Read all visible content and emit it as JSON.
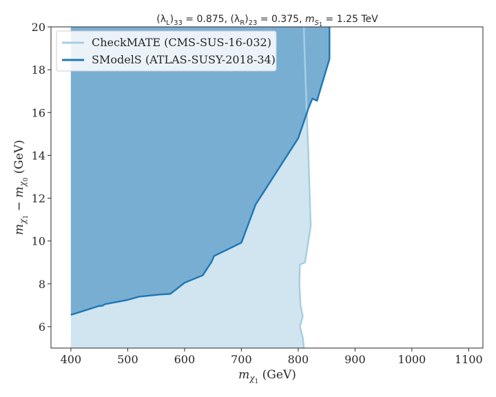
{
  "chart_data": {
    "type": "area",
    "title": "(λL)33 = 0.875, (λR)23 = 0.375, mS1 = 1.25 TeV",
    "title_parts": {
      "lamL": "(λ",
      "lamL_sub": "L",
      "lamL_idx": "33",
      "lamL_val": " = 0.875, ",
      "lamR": "(λ",
      "lamR_sub": "R",
      "lamR_idx": "23",
      "lamR_val": " = 0.375, ",
      "mS": "m",
      "mS_sub": "S",
      "mS_subsub": "1",
      "mS_val": " = 1.25 TeV"
    },
    "xlabel": "mχ1 (GeV)",
    "xlabel_parts": {
      "m": "m",
      "sub": "χ",
      "subsub": "1",
      "unit": " (GeV)"
    },
    "ylabel": "mχ1 − mχ0 (GeV)",
    "ylabel_parts": {
      "m1": "m",
      "sub1": "χ",
      "subsub1": "1",
      "minus": " − ",
      "m2": "m",
      "sub2": "χ",
      "subsub2": "0",
      "unit": " (GeV)"
    },
    "xlim": [
      365,
      1125
    ],
    "ylim": [
      5,
      20
    ],
    "xticks": [
      400,
      500,
      600,
      700,
      800,
      900,
      1000,
      1100
    ],
    "yticks": [
      6,
      8,
      10,
      12,
      14,
      16,
      18,
      20
    ],
    "grid": false,
    "legend_position": "upper-left",
    "series": [
      {
        "name": "CheckMATE (CMS-SUS-16-032)",
        "color": "#a6cee3",
        "fill": "#d1e5f0",
        "boundary": [
          [
            810,
            5
          ],
          [
            808,
            5.5
          ],
          [
            803,
            6.0
          ],
          [
            808,
            6.5
          ],
          [
            804,
            7.0
          ],
          [
            802,
            8.0
          ],
          [
            803,
            8.9
          ],
          [
            812,
            9.0
          ],
          [
            822,
            10.7
          ],
          [
            818,
            14.0
          ],
          [
            815,
            16.0
          ],
          [
            811,
            19.0
          ],
          [
            810,
            20
          ]
        ]
      },
      {
        "name": "SModelS (ATLAS-SUSY-2018-34)",
        "color": "#1f78b4",
        "fill": "#79aed3",
        "boundary": [
          [
            400,
            6.55
          ],
          [
            450,
            6.97
          ],
          [
            455,
            6.97
          ],
          [
            460,
            7.05
          ],
          [
            500,
            7.25
          ],
          [
            520,
            7.4
          ],
          [
            555,
            7.5
          ],
          [
            575,
            7.53
          ],
          [
            600,
            8.05
          ],
          [
            632,
            8.4
          ],
          [
            647,
            9.0
          ],
          [
            652,
            9.3
          ],
          [
            700,
            9.92
          ],
          [
            725,
            11.7
          ],
          [
            800,
            14.8
          ],
          [
            818,
            16.2
          ],
          [
            825,
            16.65
          ],
          [
            833,
            16.55
          ],
          [
            855,
            18.5
          ],
          [
            855,
            20
          ]
        ]
      }
    ]
  }
}
